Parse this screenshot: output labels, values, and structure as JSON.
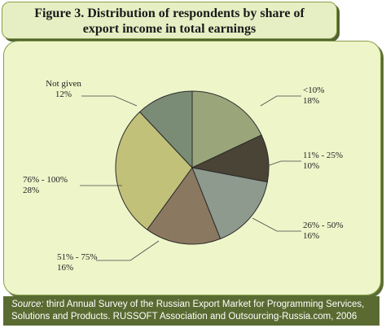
{
  "figure": {
    "title_line1": "Figure 3. Distribution of respondents by share of",
    "title_line2": "export income in total earnings"
  },
  "chart_data": {
    "type": "pie",
    "title": "Figure 3. Distribution of respondents by share of export income in total earnings",
    "slices": [
      {
        "label": "<10%",
        "value": 18,
        "value_label": "18%",
        "color": "#9aa67a"
      },
      {
        "label": "11% - 25%",
        "value": 10,
        "value_label": "10%",
        "color": "#4a4437"
      },
      {
        "label": "26% - 50%",
        "value": 16,
        "value_label": "16%",
        "color": "#8f9a8e"
      },
      {
        "label": "51% - 75%",
        "value": 16,
        "value_label": "16%",
        "color": "#8a7860"
      },
      {
        "label": "76% - 100%",
        "value": 28,
        "value_label": "28%",
        "color": "#c2c179"
      },
      {
        "label": "Not given",
        "value": 12,
        "value_label": "12%",
        "color": "#7b8c76"
      }
    ],
    "start_angle_deg": 0,
    "direction": "clockwise"
  },
  "source": {
    "prefix": "Source:",
    "text": "third Annual Survey of the Russian Export Market for Programming Services, Solutions and Products. RUSSOFT Association and Outsourcing-Russia.com, 2006"
  }
}
